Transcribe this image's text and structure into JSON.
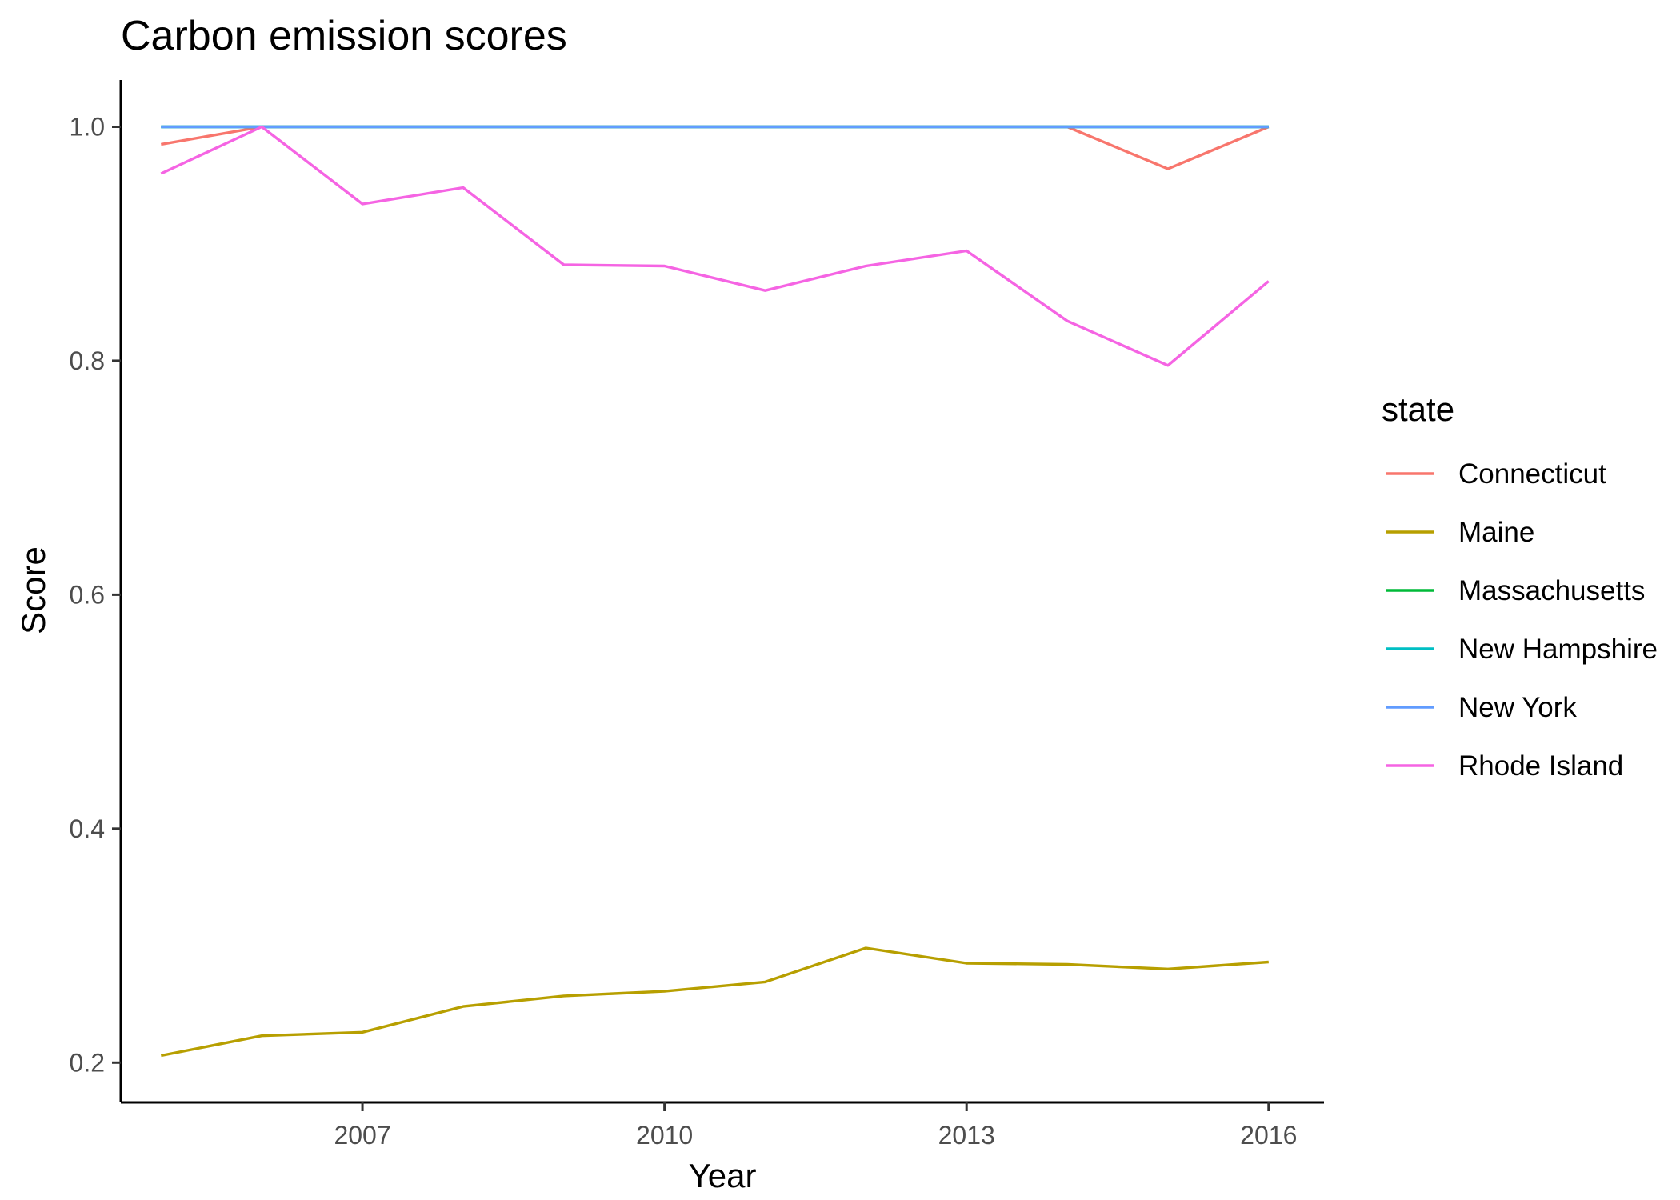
{
  "chart_data": {
    "type": "line",
    "title": "Carbon emission scores",
    "xlabel": "Year",
    "ylabel": "Score",
    "x": [
      2005,
      2006,
      2007,
      2008,
      2009,
      2010,
      2011,
      2012,
      2013,
      2014,
      2015,
      2016
    ],
    "xlim": [
      2004.6,
      2016.55
    ],
    "ylim": [
      0.166,
      1.04
    ],
    "x_ticks": [
      2007,
      2010,
      2013,
      2016
    ],
    "x_tick_labels": [
      "2007",
      "2010",
      "2013",
      "2016"
    ],
    "y_ticks": [
      0.2,
      0.4,
      0.6,
      0.8,
      1.0
    ],
    "y_tick_labels": [
      "0.2",
      "0.4",
      "0.6",
      "0.8",
      "1.0"
    ],
    "grid": false,
    "legend": {
      "title": "state",
      "position": "right"
    },
    "series": [
      {
        "name": "Connecticut",
        "color": "#F8766D",
        "values": [
          0.985,
          1.0,
          1.0,
          1.0,
          1.0,
          1.0,
          1.0,
          1.0,
          1.0,
          1.0,
          0.964,
          1.0
        ]
      },
      {
        "name": "Maine",
        "color": "#B79F00",
        "values": [
          0.206,
          0.223,
          0.226,
          0.248,
          0.257,
          0.261,
          0.269,
          0.298,
          0.285,
          0.284,
          0.28,
          0.286
        ]
      },
      {
        "name": "Massachusetts",
        "color": "#00BA38",
        "values": [
          1.0,
          1.0,
          1.0,
          1.0,
          1.0,
          1.0,
          1.0,
          1.0,
          1.0,
          1.0,
          1.0,
          1.0
        ]
      },
      {
        "name": "New Hampshire",
        "color": "#00BFC4",
        "values": [
          1.0,
          1.0,
          1.0,
          1.0,
          1.0,
          1.0,
          1.0,
          1.0,
          1.0,
          1.0,
          1.0,
          1.0
        ]
      },
      {
        "name": "New York",
        "color": "#619CFF",
        "values": [
          1.0,
          1.0,
          1.0,
          1.0,
          1.0,
          1.0,
          1.0,
          1.0,
          1.0,
          1.0,
          1.0,
          1.0
        ]
      },
      {
        "name": "Rhode Island",
        "color": "#F564E3",
        "values": [
          0.96,
          1.0,
          0.934,
          0.948,
          0.882,
          0.881,
          0.86,
          0.881,
          0.894,
          0.834,
          0.796,
          0.868
        ]
      }
    ]
  }
}
